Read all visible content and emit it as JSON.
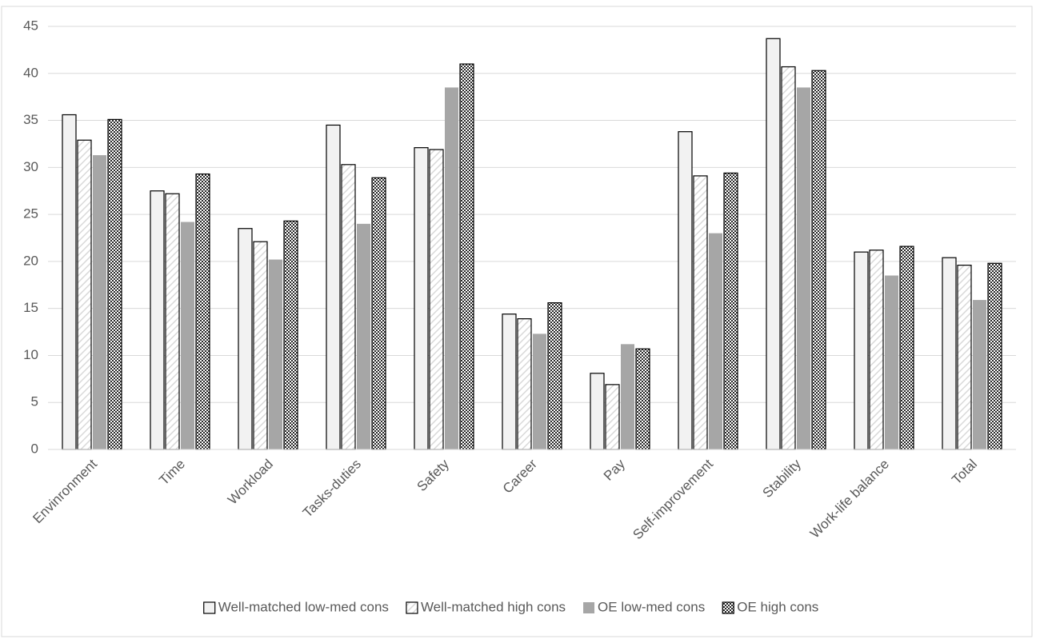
{
  "chart_data": {
    "type": "bar",
    "categories": [
      "Envinronment",
      "Time",
      "Workload",
      "Tasks-duties",
      "Safety",
      "Career",
      "Pay",
      "Self-improvement",
      "Stability",
      "Work-life balance",
      "Total"
    ],
    "series": [
      {
        "name": "Well-matched low-med cons",
        "color": "#f2f2f2",
        "pattern": "solid-outlined",
        "values": [
          35.6,
          27.5,
          23.5,
          34.5,
          32.1,
          14.4,
          8.1,
          33.8,
          43.7,
          21.0,
          20.4
        ]
      },
      {
        "name": "Well-matched high cons",
        "color": "#d9d9d9",
        "pattern": "diagonal",
        "values": [
          32.9,
          27.2,
          22.1,
          30.3,
          31.9,
          13.9,
          6.9,
          29.1,
          40.7,
          21.2,
          19.6
        ]
      },
      {
        "name": "OE low-med cons",
        "color": "#a6a6a6",
        "pattern": "solid",
        "values": [
          31.3,
          24.2,
          20.2,
          24.0,
          38.5,
          12.3,
          11.2,
          23.0,
          38.5,
          18.5,
          15.9
        ]
      },
      {
        "name": "OE high cons",
        "color": "#262626",
        "pattern": "checker",
        "values": [
          35.1,
          29.3,
          24.3,
          28.9,
          41.0,
          15.6,
          10.7,
          29.4,
          40.3,
          21.6,
          19.8
        ]
      }
    ],
    "ylim": [
      0,
      45
    ],
    "yticks": [
      0,
      5,
      10,
      15,
      20,
      25,
      30,
      35,
      40,
      45
    ],
    "grid": true,
    "legend": "bottom"
  }
}
